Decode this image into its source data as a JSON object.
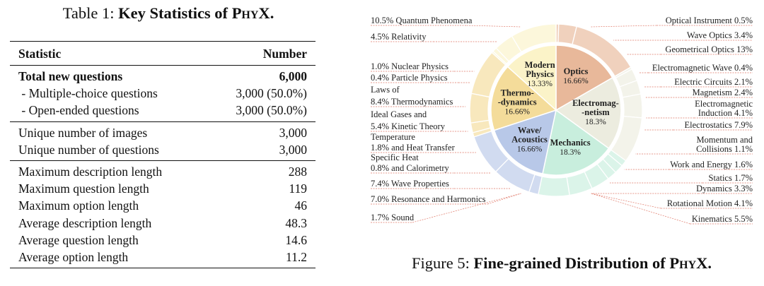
{
  "table": {
    "caption_prefix": "Table 1:",
    "caption_bold": "Key Statistics of",
    "caption_name": "PhyX",
    "caption_dot": ".",
    "header": {
      "statistic": "Statistic",
      "number": "Number"
    },
    "group1": [
      {
        "label": "Total new questions",
        "value": "6,000",
        "bold": true
      },
      {
        "label": " - Multiple-choice questions",
        "value": "3,000 (50.0%)"
      },
      {
        "label": " - Open-ended questions",
        "value": "3,000 (50.0%)"
      }
    ],
    "group2": [
      {
        "label": "Unique number of images",
        "value": "3,000"
      },
      {
        "label": "Unique number of questions",
        "value": "3,000"
      }
    ],
    "group3": [
      {
        "label": "Maximum description length",
        "value": "288"
      },
      {
        "label": "Maximum question length",
        "value": "119"
      },
      {
        "label": "Maximum option length",
        "value": "46"
      },
      {
        "label": "Average description length",
        "value": "48.3"
      },
      {
        "label": "Average question length",
        "value": "14.6"
      },
      {
        "label": "Average option length",
        "value": "11.2"
      }
    ]
  },
  "figure": {
    "caption_prefix": "Figure 5:",
    "caption_bold": "Fine-grained Distribution of",
    "caption_name": "PhyX",
    "caption_dot": "."
  },
  "chart_data": {
    "type": "pie",
    "inner": [
      {
        "name": "Optics",
        "value": 16.66,
        "label": "16.66%",
        "color": "#e8b89a"
      },
      {
        "name": "Electromag--netism",
        "value": 18.3,
        "label": "18.3%",
        "color": "#ececdf"
      },
      {
        "name": "Mechanics",
        "value": 18.3,
        "label": "18.3%",
        "color": "#c8eedd"
      },
      {
        "name": "Wave/Acoustics",
        "value": 16.66,
        "label": "16.66%",
        "color": "#b8c8e8"
      },
      {
        "name": "Thermo--dynamics",
        "value": 16.66,
        "label": "16.66%",
        "color": "#f4dc9a"
      },
      {
        "name": "Modern Physics",
        "value": 13.33,
        "label": "13.33%",
        "color": "#fbf3c8"
      }
    ],
    "outer_labels": [
      {
        "text": "10.5% Quantum Phenomena",
        "value": 10.5
      },
      {
        "text": "4.5% Relativity",
        "value": 4.5
      },
      {
        "text": "1.0% Nuclear Physics",
        "value": 1.0
      },
      {
        "text": "0.4% Particle Physics",
        "value": 0.4
      },
      {
        "text": "Laws of",
        "value": null
      },
      {
        "text": "8.4% Thermodynamics",
        "value": 8.4
      },
      {
        "text": "Ideal Gases and",
        "value": null
      },
      {
        "text": "5.4% Kinetic Theory",
        "value": 5.4
      },
      {
        "text": "Temperature",
        "value": null
      },
      {
        "text": "1.8% and Heat Transfer",
        "value": 1.8
      },
      {
        "text": "Specific Heat",
        "value": null
      },
      {
        "text": "0.8% and Calorimetry",
        "value": 0.8
      },
      {
        "text": "7.4% Wave Properties",
        "value": 7.4
      },
      {
        "text": "7.0% Resonance and Harmonics",
        "value": 7.0
      },
      {
        "text": "1.7% Sound",
        "value": 1.7
      },
      {
        "text": "Optical Instrument 0.5%",
        "value": 0.5
      },
      {
        "text": "Wave Optics 3.4%",
        "value": 3.4
      },
      {
        "text": "Geometrical Optics 13%",
        "value": 13
      },
      {
        "text": "Electromagnetic Wave 0.4%",
        "value": 0.4
      },
      {
        "text": "Electric Circuits 2.1%",
        "value": 2.1
      },
      {
        "text": "Magnetism 2.4%",
        "value": 2.4
      },
      {
        "text": "Electromagnetic",
        "value": null
      },
      {
        "text": "Induction 4.1%",
        "value": 4.1
      },
      {
        "text": "Electrostatics 7.9%",
        "value": 7.9
      },
      {
        "text": "Momentum and",
        "value": null
      },
      {
        "text": "Collisions 1.1%",
        "value": 1.1
      },
      {
        "text": "Work and Energy 1.6%",
        "value": 1.6
      },
      {
        "text": "Statics 1.7%",
        "value": 1.7
      },
      {
        "text": "Dynamics 3.3%",
        "value": 3.3
      },
      {
        "text": "Rotational Motion 4.1%",
        "value": 4.1
      },
      {
        "text": "Kinematics 5.5%",
        "value": 5.5
      }
    ]
  }
}
